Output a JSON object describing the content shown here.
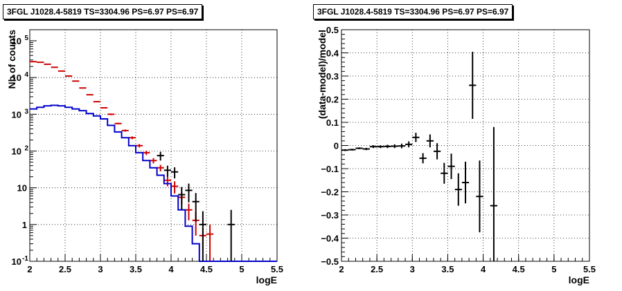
{
  "chart_data": [
    {
      "type": "step",
      "title": "3FGL J1028.4-5819 TS=3304.96 PS=6.97 PS=6.97",
      "xlabel": "logE",
      "ylabel": "Nb of counts",
      "xlim": [
        2,
        5.5
      ],
      "ylim": [
        0.1,
        200000
      ],
      "yscale": "log",
      "grid": true,
      "xticks": [
        "2",
        "2.5",
        "3",
        "3.5",
        "4",
        "4.5",
        "5",
        "5.5"
      ],
      "yticks": [
        {
          "v": 0.1,
          "base": "10",
          "exp": "-1"
        },
        {
          "v": 1,
          "base": "1",
          "exp": ""
        },
        {
          "v": 10,
          "base": "10",
          "exp": ""
        },
        {
          "v": 100,
          "base": "10",
          "exp": "2"
        },
        {
          "v": 1000,
          "base": "10",
          "exp": "3"
        },
        {
          "v": 10000,
          "base": "10",
          "exp": "4"
        },
        {
          "v": 100000,
          "base": "10",
          "exp": "5"
        }
      ],
      "series": [
        {
          "color": "#cc0000",
          "style": "errorbars",
          "x": [
            2.05,
            2.15,
            2.25,
            2.35,
            2.45,
            2.55,
            2.65,
            2.75,
            2.85,
            2.95,
            3.05,
            3.15,
            3.25,
            3.35,
            3.45,
            3.55,
            3.65,
            3.75,
            3.85,
            3.95,
            4.05,
            4.15,
            4.25,
            4.35,
            4.45,
            4.55
          ],
          "y": [
            27000,
            26000,
            23000,
            19000,
            15000,
            11000,
            8000,
            5200,
            3400,
            2200,
            1500,
            1000,
            560,
            360,
            230,
            140,
            90,
            55,
            35,
            16,
            11,
            5.5,
            2.5,
            1.3,
            0.5,
            0.55
          ],
          "yerr": [
            500,
            500,
            400,
            400,
            300,
            200,
            200,
            150,
            100,
            80,
            60,
            50,
            30,
            25,
            20,
            15,
            12,
            9,
            7,
            5,
            4,
            2,
            1.2,
            0.8,
            0.3,
            0.45
          ]
        },
        {
          "color": "#0000cc",
          "style": "step",
          "x": [
            2.05,
            2.15,
            2.25,
            2.35,
            2.45,
            2.55,
            2.65,
            2.75,
            2.85,
            2.95,
            3.05,
            3.15,
            3.25,
            3.35,
            3.45,
            3.55,
            3.65,
            3.75,
            3.85,
            3.95,
            4.05,
            4.15,
            4.25,
            4.35,
            4.45,
            4.55,
            4.65,
            4.75,
            4.85,
            4.95,
            5.05,
            5.15,
            5.25,
            5.35,
            5.45
          ],
          "y": [
            1400,
            1550,
            1700,
            1750,
            1700,
            1550,
            1400,
            1250,
            1050,
            900,
            750,
            500,
            330,
            230,
            140,
            90,
            55,
            35,
            22,
            13,
            6,
            2.5,
            0.9,
            0.3,
            0.1,
            0.1,
            0.1,
            0.1,
            0.1,
            0.1,
            0.1,
            0.1,
            0.1,
            0.1,
            0.1
          ]
        },
        {
          "color": "#000000",
          "style": "errorbars",
          "x": [
            3.85,
            3.95,
            4.05,
            4.15,
            4.25,
            4.35,
            4.45,
            4.85
          ],
          "y": [
            75,
            30,
            27,
            6.5,
            8.5,
            4.2,
            1.0,
            1.0
          ],
          "yerr": [
            20,
            10,
            9,
            4,
            4.5,
            3,
            1.3,
            1.5
          ]
        }
      ]
    },
    {
      "type": "scatter",
      "title": "3FGL J1028.4-5819 TS=3304.96 PS=6.97 PS=6.97",
      "xlabel": "logE",
      "ylabel": "(data-model)/model",
      "xlim": [
        2,
        5.5
      ],
      "ylim": [
        -0.5,
        0.5
      ],
      "grid": true,
      "xticks": [
        "2",
        "2.5",
        "3",
        "3.5",
        "4",
        "4.5",
        "5",
        "5.5"
      ],
      "yticks": [
        "−0.5",
        "−0.4",
        "−0.3",
        "−0.2",
        "−0.1",
        "0",
        "0.1",
        "0.2",
        "0.3",
        "0.4",
        "0.5"
      ],
      "series": [
        {
          "color": "#000000",
          "x": [
            2.05,
            2.15,
            2.25,
            2.35,
            2.45,
            2.55,
            2.65,
            2.75,
            2.85,
            2.95,
            3.05,
            3.15,
            3.25,
            3.35,
            3.45,
            3.55,
            3.65,
            3.75,
            3.85,
            3.95,
            4.15
          ],
          "y": [
            -0.02,
            -0.018,
            -0.012,
            -0.015,
            -0.005,
            -0.005,
            -0.004,
            -0.003,
            -0.002,
            0.005,
            0.035,
            -0.055,
            0.02,
            -0.025,
            -0.12,
            -0.09,
            -0.19,
            -0.16,
            0.26,
            -0.22,
            -0.26
          ],
          "yerr": [
            0.004,
            0.004,
            0.004,
            0.005,
            0.006,
            0.006,
            0.007,
            0.008,
            0.01,
            0.013,
            0.02,
            0.022,
            0.028,
            0.035,
            0.045,
            0.055,
            0.07,
            0.09,
            0.145,
            0.155,
            0.34
          ]
        }
      ]
    }
  ]
}
